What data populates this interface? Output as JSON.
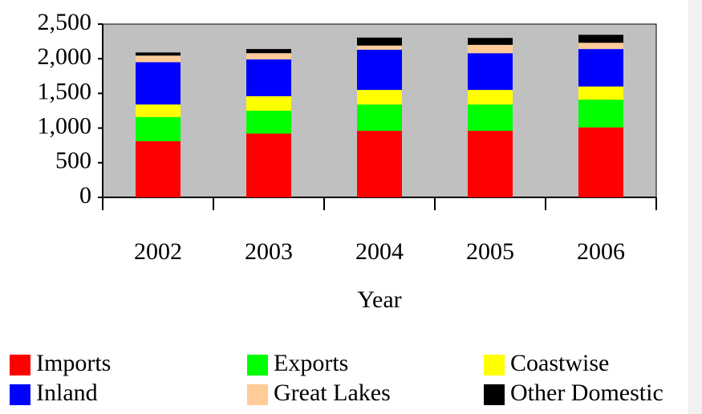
{
  "chart_data": {
    "type": "stacked_bar",
    "x_label": "Year",
    "categories": [
      "2002",
      "2003",
      "2004",
      "2005",
      "2006"
    ],
    "series": [
      {
        "name": "Imports",
        "color": "#ff0000",
        "values": [
          810,
          920,
          960,
          960,
          1010
        ]
      },
      {
        "name": "Exports",
        "color": "#00ff00",
        "values": [
          350,
          330,
          380,
          380,
          400
        ]
      },
      {
        "name": "Coastwise",
        "color": "#ffff00",
        "values": [
          180,
          210,
          210,
          210,
          190
        ]
      },
      {
        "name": "Inland",
        "color": "#0000ff",
        "values": [
          610,
          530,
          580,
          530,
          540
        ]
      },
      {
        "name": "Great Lakes",
        "color": "#ffcc99",
        "values": [
          95,
          90,
          60,
          120,
          90
        ]
      },
      {
        "name": "Other Domestic",
        "color": "#000000",
        "values": [
          45,
          60,
          115,
          100,
          115
        ]
      }
    ],
    "ylim": [
      0,
      2500
    ],
    "yticks": [
      0,
      500,
      {
        "value": 1000,
        "label": "1,000"
      },
      {
        "value": 1500,
        "label": "1,500"
      },
      {
        "value": 2000,
        "label": "2,000"
      },
      {
        "value": 2500,
        "label": "2,500"
      }
    ],
    "plot_background": "#c0c0c0"
  }
}
